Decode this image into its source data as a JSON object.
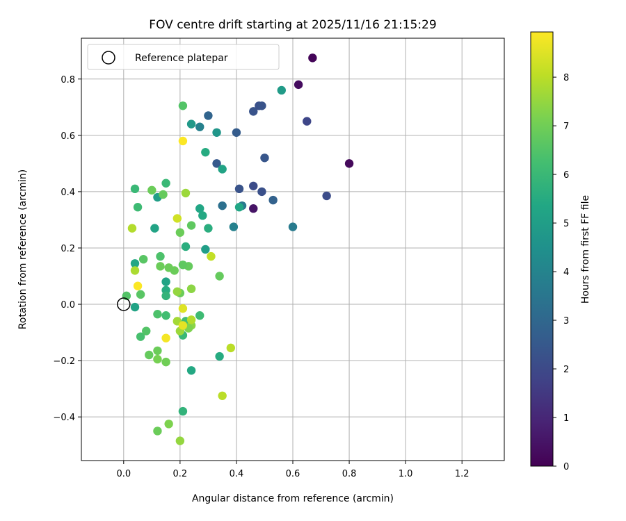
{
  "chart_data": {
    "type": "scatter",
    "title": "FOV centre drift starting at 2025/11/16 21:15:29",
    "xlabel": "Angular distance from reference (arcmin)",
    "ylabel": "Rotation from reference (arcmin)",
    "xlim": [
      -0.15,
      1.35
    ],
    "ylim": [
      -0.555,
      0.945
    ],
    "xticks": [
      0.0,
      0.2,
      0.4,
      0.6,
      0.8,
      1.0,
      1.2
    ],
    "xtick_labels": [
      "0.0",
      "0.2",
      "0.4",
      "0.6",
      "0.8",
      "1.0",
      "1.2"
    ],
    "yticks": [
      -0.4,
      -0.2,
      0.0,
      0.2,
      0.4,
      0.6,
      0.8
    ],
    "ytick_labels": [
      "−0.4",
      "−0.2",
      "0.0",
      "0.2",
      "0.4",
      "0.6",
      "0.8"
    ],
    "grid": true,
    "legend": {
      "position": "top-left",
      "entries": [
        "Reference platepar"
      ]
    },
    "reference_point": {
      "x": 0.0,
      "y": 0.0,
      "label": "Reference platepar"
    },
    "colorbar": {
      "label": "Hours from first FF file",
      "min": 0,
      "max": 8.93,
      "ticks": [
        0,
        1,
        2,
        3,
        4,
        5,
        6,
        7,
        8
      ],
      "tick_labels": [
        "0",
        "1",
        "2",
        "3",
        "4",
        "5",
        "6",
        "7",
        "8"
      ],
      "colormap": "viridis"
    },
    "series": [
      {
        "name": "FOV centre drift",
        "points": [
          {
            "x": 0.67,
            "y": 0.875,
            "h": 0.1
          },
          {
            "x": 0.62,
            "y": 0.78,
            "h": 0.3
          },
          {
            "x": 0.8,
            "y": 0.5,
            "h": 0.2
          },
          {
            "x": 0.46,
            "y": 0.34,
            "h": 0.5
          },
          {
            "x": 0.65,
            "y": 0.65,
            "h": 1.9
          },
          {
            "x": 0.48,
            "y": 0.705,
            "h": 2.2
          },
          {
            "x": 0.49,
            "y": 0.705,
            "h": 2.3
          },
          {
            "x": 0.46,
            "y": 0.685,
            "h": 2.3
          },
          {
            "x": 0.5,
            "y": 0.52,
            "h": 2.4
          },
          {
            "x": 0.4,
            "y": 0.61,
            "h": 2.6
          },
          {
            "x": 0.3,
            "y": 0.67,
            "h": 2.9
          },
          {
            "x": 0.33,
            "y": 0.5,
            "h": 2.5
          },
          {
            "x": 0.46,
            "y": 0.42,
            "h": 2.1
          },
          {
            "x": 0.49,
            "y": 0.4,
            "h": 2.2
          },
          {
            "x": 0.41,
            "y": 0.41,
            "h": 2.3
          },
          {
            "x": 0.72,
            "y": 0.385,
            "h": 2.1
          },
          {
            "x": 0.53,
            "y": 0.37,
            "h": 2.8
          },
          {
            "x": 0.6,
            "y": 0.275,
            "h": 3.7
          },
          {
            "x": 0.35,
            "y": 0.35,
            "h": 3.3
          },
          {
            "x": 0.42,
            "y": 0.35,
            "h": 3.6
          },
          {
            "x": 0.39,
            "y": 0.275,
            "h": 3.9
          },
          {
            "x": 0.27,
            "y": 0.63,
            "h": 3.9
          },
          {
            "x": 0.56,
            "y": 0.76,
            "h": 4.9
          },
          {
            "x": 0.33,
            "y": 0.61,
            "h": 4.7
          },
          {
            "x": 0.24,
            "y": 0.64,
            "h": 4.8
          },
          {
            "x": 0.35,
            "y": 0.48,
            "h": 5.2
          },
          {
            "x": 0.29,
            "y": 0.54,
            "h": 5.5
          },
          {
            "x": 0.41,
            "y": 0.345,
            "h": 5.3
          },
          {
            "x": 0.27,
            "y": 0.34,
            "h": 5.3
          },
          {
            "x": 0.28,
            "y": 0.315,
            "h": 5.4
          },
          {
            "x": 0.29,
            "y": 0.195,
            "h": 5.0
          },
          {
            "x": 0.3,
            "y": 0.27,
            "h": 5.6
          },
          {
            "x": 0.12,
            "y": 0.38,
            "h": 5.0
          },
          {
            "x": 0.11,
            "y": 0.27,
            "h": 5.2
          },
          {
            "x": 0.04,
            "y": 0.145,
            "h": 5.3
          },
          {
            "x": 0.04,
            "y": -0.01,
            "h": 5.2
          },
          {
            "x": 0.15,
            "y": 0.08,
            "h": 5.2
          },
          {
            "x": 0.15,
            "y": 0.05,
            "h": 5.5
          },
          {
            "x": 0.22,
            "y": 0.205,
            "h": 5.6
          },
          {
            "x": 0.24,
            "y": -0.235,
            "h": 5.4
          },
          {
            "x": 0.34,
            "y": -0.185,
            "h": 5.5
          },
          {
            "x": 0.21,
            "y": -0.38,
            "h": 5.8
          },
          {
            "x": 0.15,
            "y": 0.03,
            "h": 5.8
          },
          {
            "x": 0.21,
            "y": -0.11,
            "h": 6.0
          },
          {
            "x": 0.22,
            "y": -0.06,
            "h": 6.2
          },
          {
            "x": 0.27,
            "y": -0.04,
            "h": 6.1
          },
          {
            "x": 0.04,
            "y": 0.41,
            "h": 6.0
          },
          {
            "x": 0.05,
            "y": 0.345,
            "h": 6.1
          },
          {
            "x": 0.15,
            "y": 0.43,
            "h": 6.0
          },
          {
            "x": 0.21,
            "y": 0.705,
            "h": 6.5
          },
          {
            "x": 0.15,
            "y": -0.04,
            "h": 6.2
          },
          {
            "x": 0.12,
            "y": -0.035,
            "h": 6.4
          },
          {
            "x": 0.06,
            "y": -0.115,
            "h": 6.3
          },
          {
            "x": 0.08,
            "y": -0.095,
            "h": 6.5
          },
          {
            "x": 0.01,
            "y": 0.03,
            "h": 6.5
          },
          {
            "x": 0.06,
            "y": 0.035,
            "h": 6.6
          },
          {
            "x": 0.07,
            "y": 0.16,
            "h": 6.6
          },
          {
            "x": 0.13,
            "y": 0.17,
            "h": 6.4
          },
          {
            "x": 0.14,
            "y": 0.39,
            "h": 6.8
          },
          {
            "x": 0.1,
            "y": 0.405,
            "h": 6.9
          },
          {
            "x": 0.13,
            "y": 0.135,
            "h": 6.9
          },
          {
            "x": 0.16,
            "y": 0.13,
            "h": 6.9
          },
          {
            "x": 0.18,
            "y": 0.12,
            "h": 6.9
          },
          {
            "x": 0.23,
            "y": 0.135,
            "h": 6.8
          },
          {
            "x": 0.21,
            "y": 0.14,
            "h": 6.7
          },
          {
            "x": 0.34,
            "y": 0.1,
            "h": 6.8
          },
          {
            "x": 0.24,
            "y": 0.28,
            "h": 6.7
          },
          {
            "x": 0.2,
            "y": 0.255,
            "h": 6.9
          },
          {
            "x": 0.2,
            "y": 0.04,
            "h": 6.9
          },
          {
            "x": 0.09,
            "y": -0.18,
            "h": 6.8
          },
          {
            "x": 0.12,
            "y": -0.165,
            "h": 6.9
          },
          {
            "x": 0.15,
            "y": -0.205,
            "h": 7.0
          },
          {
            "x": 0.12,
            "y": -0.195,
            "h": 7.1
          },
          {
            "x": 0.12,
            "y": -0.45,
            "h": 6.9
          },
          {
            "x": 0.16,
            "y": -0.425,
            "h": 7.2
          },
          {
            "x": 0.2,
            "y": -0.485,
            "h": 7.5
          },
          {
            "x": 0.24,
            "y": 0.055,
            "h": 7.4
          },
          {
            "x": 0.19,
            "y": 0.045,
            "h": 7.5
          },
          {
            "x": 0.22,
            "y": 0.395,
            "h": 7.6
          },
          {
            "x": 0.03,
            "y": 0.27,
            "h": 7.9
          },
          {
            "x": 0.04,
            "y": 0.12,
            "h": 7.8
          },
          {
            "x": 0.19,
            "y": -0.06,
            "h": 7.7
          },
          {
            "x": 0.2,
            "y": -0.095,
            "h": 7.6
          },
          {
            "x": 0.24,
            "y": -0.075,
            "h": 7.4
          },
          {
            "x": 0.24,
            "y": -0.055,
            "h": 7.9
          },
          {
            "x": 0.23,
            "y": -0.085,
            "h": 7.2
          },
          {
            "x": 0.35,
            "y": -0.325,
            "h": 8.0
          },
          {
            "x": 0.38,
            "y": -0.155,
            "h": 8.0
          },
          {
            "x": 0.31,
            "y": 0.17,
            "h": 8.1
          },
          {
            "x": 0.19,
            "y": 0.305,
            "h": 8.3
          },
          {
            "x": 0.21,
            "y": -0.015,
            "h": 8.5
          },
          {
            "x": 0.21,
            "y": -0.075,
            "h": 8.6
          },
          {
            "x": 0.15,
            "y": -0.12,
            "h": 8.8
          },
          {
            "x": 0.05,
            "y": 0.065,
            "h": 8.9
          },
          {
            "x": 0.21,
            "y": 0.58,
            "h": 8.9
          }
        ]
      }
    ]
  }
}
